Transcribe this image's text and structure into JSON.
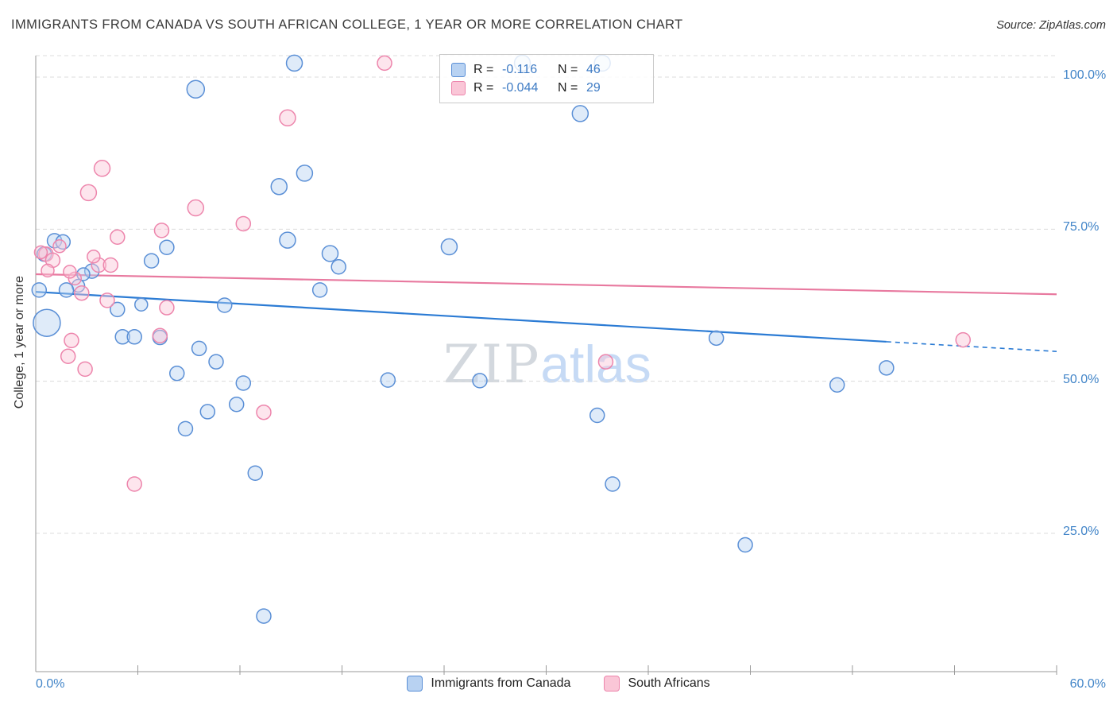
{
  "header": {
    "title": "IMMIGRANTS FROM CANADA VS SOUTH AFRICAN COLLEGE, 1 YEAR OR MORE CORRELATION CHART",
    "source": "Source: ZipAtlas.com"
  },
  "watermark": {
    "part1": "ZIP",
    "part2": "atlas"
  },
  "axes": {
    "y_title": "College, 1 year or more",
    "x_min_label": "0.0%",
    "x_max_label": "60.0%",
    "y_ticks": [
      {
        "value": 100,
        "label": "100.0%"
      },
      {
        "value": 75,
        "label": "75.0%"
      },
      {
        "value": 50,
        "label": "50.0%"
      },
      {
        "value": 25,
        "label": "25.0%"
      }
    ]
  },
  "legend_box": {
    "rows": [
      {
        "r_label": "R =",
        "r_value": "-0.116",
        "n_label": "N =",
        "n_value": "46"
      },
      {
        "r_label": "R =",
        "r_value": "-0.044",
        "n_label": "N =",
        "n_value": "29"
      }
    ]
  },
  "legend": {
    "series": [
      {
        "label": "Immigrants from Canada"
      },
      {
        "label": "South Africans"
      }
    ]
  },
  "colors": {
    "axis_label_blue": "#4285C8",
    "stat_value_blue": "#3E7BC4",
    "canada_fill": "#B8D2F2",
    "canada_stroke": "#5A8FD6",
    "canada_trend": "#2B7BD4",
    "south_african_fill": "#FAC6D7",
    "south_african_stroke": "#ED85AC",
    "south_african_trend": "#E8799F"
  },
  "chart_data": {
    "type": "scatter",
    "title": "IMMIGRANTS FROM CANADA VS SOUTH AFRICAN COLLEGE, 1 YEAR OR MORE CORRELATION CHART",
    "xlabel": "Immigrants from Canada (%)",
    "ylabel": "College, 1 year or more (%)",
    "xlim": [
      0,
      60
    ],
    "ylim": [
      0,
      103.5
    ],
    "x_tick_step": 6,
    "grid_y_values": [
      100,
      75,
      50,
      25
    ],
    "legend_position": "bottom-center",
    "series": [
      {
        "name": "Immigrants from Canada",
        "R": -0.116,
        "N": 46,
        "fill": "#B8D2F2",
        "stroke": "#5A8FD6",
        "points": [
          [
            9.4,
            98.0,
            11
          ],
          [
            15.2,
            102.3,
            10
          ],
          [
            28.6,
            102.3,
            10
          ],
          [
            33.3,
            102.3,
            10
          ],
          [
            32.0,
            94.0,
            10
          ],
          [
            15.8,
            84.2,
            10
          ],
          [
            14.3,
            82.0,
            10
          ],
          [
            14.8,
            73.2,
            10
          ],
          [
            17.3,
            71.0,
            10
          ],
          [
            17.8,
            68.8,
            9
          ],
          [
            24.3,
            72.1,
            10
          ],
          [
            6.8,
            69.8,
            9
          ],
          [
            7.7,
            72.0,
            9
          ],
          [
            1.1,
            73.1,
            9
          ],
          [
            1.6,
            72.9,
            9
          ],
          [
            0.5,
            70.9,
            9
          ],
          [
            3.3,
            68.1,
            9
          ],
          [
            2.8,
            67.6,
            8
          ],
          [
            2.5,
            65.7,
            8
          ],
          [
            1.8,
            65.0,
            9
          ],
          [
            0.2,
            65.0,
            9
          ],
          [
            4.8,
            61.8,
            9
          ],
          [
            6.2,
            62.6,
            8
          ],
          [
            0.65,
            59.6,
            17
          ],
          [
            11.1,
            62.5,
            9
          ],
          [
            5.1,
            57.3,
            9
          ],
          [
            5.8,
            57.3,
            9
          ],
          [
            7.3,
            57.2,
            9
          ],
          [
            9.6,
            55.4,
            9
          ],
          [
            10.6,
            53.2,
            9
          ],
          [
            40.0,
            57.1,
            9
          ],
          [
            8.3,
            51.3,
            9
          ],
          [
            12.2,
            49.7,
            9
          ],
          [
            20.7,
            50.2,
            9
          ],
          [
            26.1,
            50.1,
            9
          ],
          [
            50.0,
            52.2,
            9
          ],
          [
            47.1,
            49.4,
            9
          ],
          [
            11.8,
            46.2,
            9
          ],
          [
            10.1,
            45.0,
            9
          ],
          [
            8.8,
            42.2,
            9
          ],
          [
            33.0,
            44.4,
            9
          ],
          [
            12.9,
            34.9,
            9
          ],
          [
            33.9,
            33.1,
            9
          ],
          [
            41.7,
            23.1,
            9
          ],
          [
            13.4,
            11.4,
            9
          ],
          [
            16.7,
            65.0,
            9
          ]
        ]
      },
      {
        "name": "South Africans",
        "R": -0.044,
        "N": 29,
        "fill": "#FAC6D7",
        "stroke": "#ED85AC",
        "points": [
          [
            20.5,
            102.3,
            9
          ],
          [
            14.8,
            93.3,
            10
          ],
          [
            3.9,
            85.0,
            10
          ],
          [
            3.1,
            81.0,
            10
          ],
          [
            9.4,
            78.5,
            10
          ],
          [
            12.2,
            75.9,
            9
          ],
          [
            7.4,
            74.8,
            9
          ],
          [
            4.8,
            73.7,
            9
          ],
          [
            0.6,
            70.9,
            9
          ],
          [
            1.0,
            69.9,
            9
          ],
          [
            3.7,
            69.1,
            9
          ],
          [
            4.4,
            69.1,
            9
          ],
          [
            2.7,
            64.5,
            9
          ],
          [
            4.2,
            63.3,
            9
          ],
          [
            7.7,
            62.1,
            9
          ],
          [
            2.1,
            56.7,
            9
          ],
          [
            1.9,
            54.1,
            9
          ],
          [
            2.9,
            52.0,
            9
          ],
          [
            13.4,
            44.9,
            9
          ],
          [
            5.8,
            33.1,
            9
          ],
          [
            33.5,
            53.2,
            9
          ],
          [
            54.5,
            56.8,
            9
          ],
          [
            0.3,
            71.2,
            8
          ],
          [
            1.4,
            72.2,
            8
          ],
          [
            2.3,
            66.9,
            8
          ],
          [
            3.4,
            70.5,
            8
          ],
          [
            0.7,
            68.2,
            8
          ],
          [
            7.3,
            57.5,
            9
          ],
          [
            2.0,
            68.0,
            8
          ]
        ]
      }
    ],
    "trend_lines": [
      {
        "series": "Immigrants from Canada",
        "color": "#2B7BD4",
        "start": [
          0,
          64.7
        ],
        "solid_end": [
          50,
          56.5
        ],
        "dashed_end": [
          60,
          54.9
        ]
      },
      {
        "series": "South Africans",
        "color": "#E8799F",
        "start": [
          0,
          67.6
        ],
        "solid_end": [
          60,
          64.3
        ],
        "dashed_end": null
      }
    ]
  }
}
